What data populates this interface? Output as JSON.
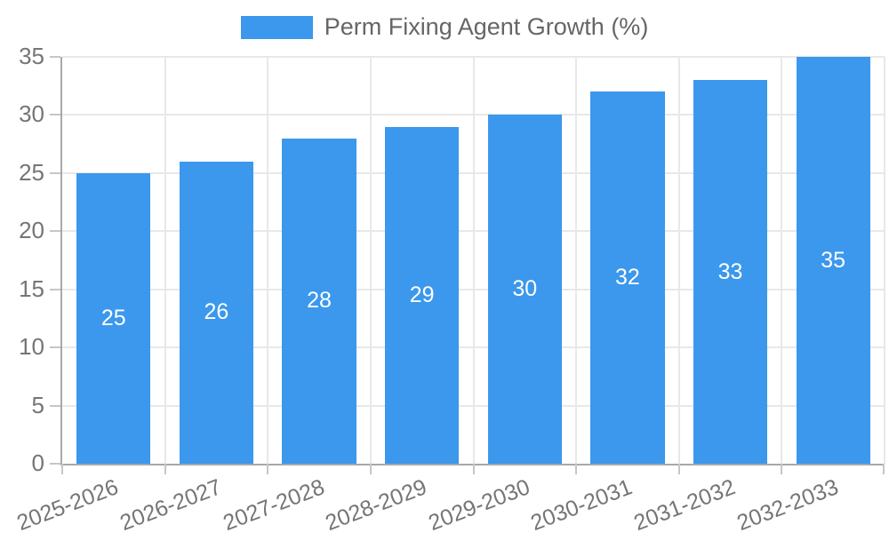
{
  "legend": {
    "label": "Perm Fixing Agent Growth (%)"
  },
  "colors": {
    "bar": "#3b98ec",
    "bar_label_text": "#ffffff",
    "tick_label_text": "#757575",
    "legend_text": "#666666",
    "gridline": "#e8e8e8",
    "axis_line": "#a8a8a8"
  },
  "chart_data": {
    "type": "bar",
    "title": "Perm Fixing Agent Growth (%)",
    "categories": [
      "2025-2026",
      "2026-2027",
      "2027-2028",
      "2028-2029",
      "2029-2030",
      "2030-2031",
      "2031-2032",
      "2032-2033"
    ],
    "values": [
      25,
      26,
      28,
      29,
      30,
      32,
      33,
      35
    ],
    "xlabel": "",
    "ylabel": "",
    "ylim": [
      0,
      35
    ],
    "yticks": [
      0,
      5,
      10,
      15,
      20,
      25,
      30,
      35
    ],
    "grid": true,
    "legend_position": "top",
    "bar_labels": "inside-center",
    "x_label_rotation_deg": -21,
    "bar_width_fraction": 0.72
  }
}
